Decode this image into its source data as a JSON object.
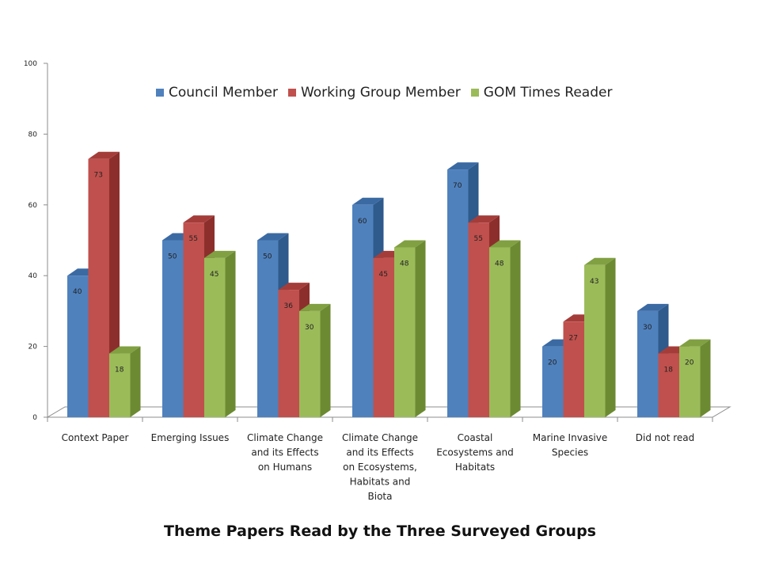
{
  "chart_data": {
    "type": "bar",
    "title": "Theme Papers Read by the Three Surveyed Groups",
    "categories": [
      "Context Paper",
      "Emerging Issues",
      "Climate Change and its Effects on Humans",
      "Climate Change and its Effects on Ecosystems, Habitats and Biota",
      "Coastal Ecosystems and Habitats",
      "Marine Invasive Species",
      "Did not read"
    ],
    "category_lines": [
      [
        "Context Paper"
      ],
      [
        "Emerging Issues"
      ],
      [
        "Climate Change",
        "and its Effects",
        "on Humans"
      ],
      [
        "Climate Change",
        "and its Effects",
        "on Ecosystems,",
        "Habitats and",
        "Biota"
      ],
      [
        "Coastal",
        "Ecosystems and",
        "Habitats"
      ],
      [
        "Marine Invasive",
        "Species"
      ],
      [
        "Did not read"
      ]
    ],
    "series": [
      {
        "name": "Council Member",
        "values": [
          40,
          50,
          50,
          60,
          70,
          20,
          30
        ],
        "color": "#4f81bd",
        "side": "#2e5a8c",
        "top": "#3b6aa3"
      },
      {
        "name": "Working Group Member",
        "values": [
          73,
          55,
          36,
          45,
          55,
          27,
          18
        ],
        "color": "#c0504d",
        "side": "#8c2f2c",
        "top": "#a43d3a"
      },
      {
        "name": "GOM Times Reader",
        "values": [
          18,
          45,
          30,
          48,
          48,
          43,
          20
        ],
        "color": "#9bbb59",
        "side": "#6c8a32",
        "top": "#80a042"
      }
    ],
    "ylim": [
      0,
      100
    ],
    "yticks": [
      0,
      20,
      40,
      60,
      80,
      100
    ],
    "grid": false,
    "legend_position": "top",
    "three_d": true
  }
}
